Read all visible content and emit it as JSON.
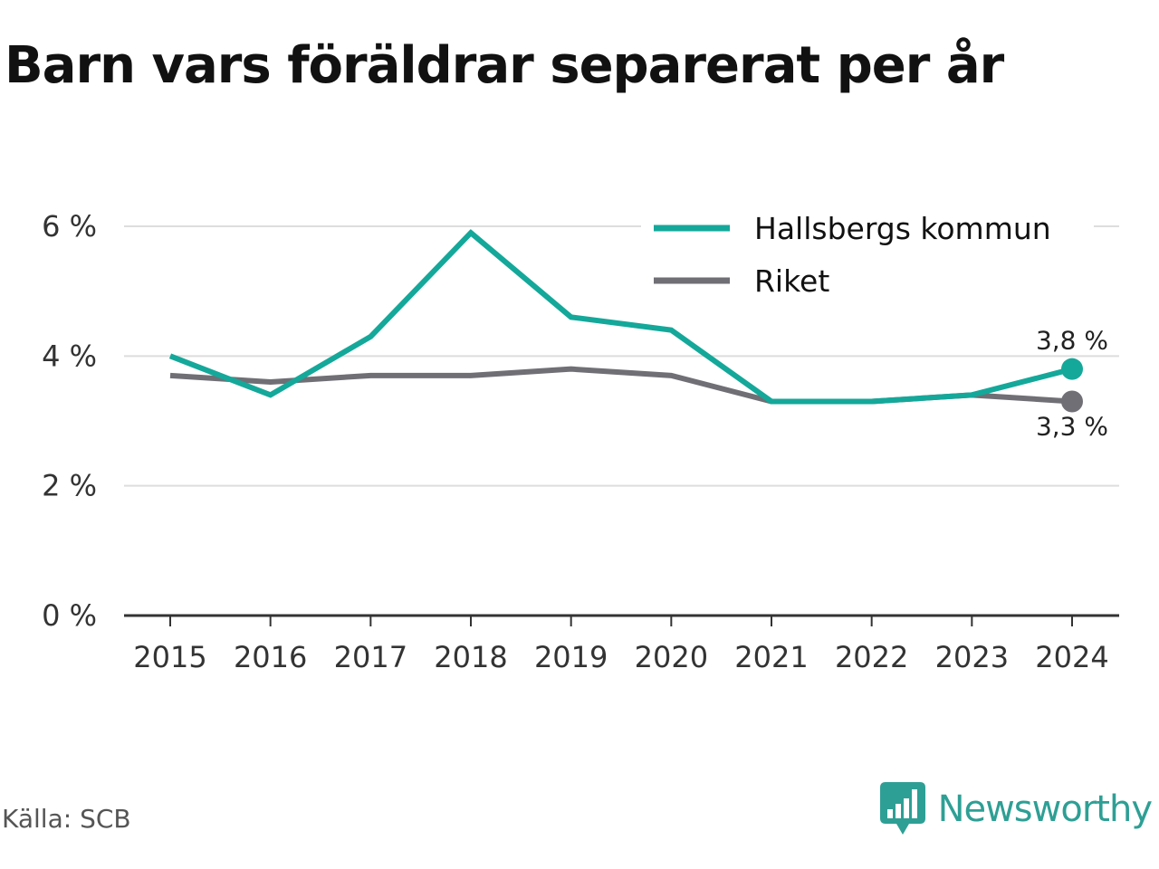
{
  "title": "Barn vars föräldrar separerat per år",
  "source": "Källa: SCB",
  "brand": "Newsworthy",
  "colors": {
    "hallsberg": "#14a89a",
    "riket": "#6f6f75",
    "grid": "#dddddd",
    "axis": "#333333",
    "brand": "#2e9f95"
  },
  "chart_data": {
    "type": "line",
    "title": "Barn vars föräldrar separerat per år",
    "xlabel": "",
    "ylabel": "",
    "x": [
      "2015",
      "2016",
      "2017",
      "2018",
      "2019",
      "2020",
      "2021",
      "2022",
      "2023",
      "2024"
    ],
    "ylim": [
      0,
      6
    ],
    "yticks": [
      0,
      2,
      4,
      6
    ],
    "ytick_labels": [
      "0 %",
      "2 %",
      "4 %",
      "6 %"
    ],
    "grid": true,
    "legend_position": "top-right",
    "series": [
      {
        "name": "Hallsbergs kommun",
        "color": "#14a89a",
        "values": [
          4.0,
          3.4,
          4.3,
          5.9,
          4.6,
          4.4,
          3.3,
          3.3,
          3.4,
          3.8
        ],
        "end_label": "3,8 %"
      },
      {
        "name": "Riket",
        "color": "#6f6f75",
        "values": [
          3.7,
          3.6,
          3.7,
          3.7,
          3.8,
          3.7,
          3.3,
          3.3,
          3.4,
          3.3
        ],
        "end_label": "3,3 %"
      }
    ]
  }
}
